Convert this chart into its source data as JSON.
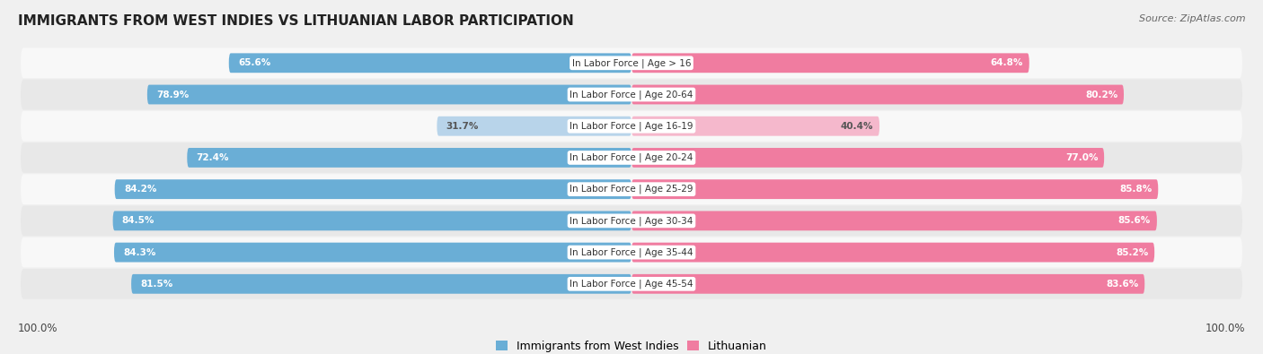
{
  "title": "IMMIGRANTS FROM WEST INDIES VS LITHUANIAN LABOR PARTICIPATION",
  "source": "Source: ZipAtlas.com",
  "categories": [
    "In Labor Force | Age > 16",
    "In Labor Force | Age 20-64",
    "In Labor Force | Age 16-19",
    "In Labor Force | Age 20-24",
    "In Labor Force | Age 25-29",
    "In Labor Force | Age 30-34",
    "In Labor Force | Age 35-44",
    "In Labor Force | Age 45-54"
  ],
  "west_indies_values": [
    65.6,
    78.9,
    31.7,
    72.4,
    84.2,
    84.5,
    84.3,
    81.5
  ],
  "lithuanian_values": [
    64.8,
    80.2,
    40.4,
    77.0,
    85.8,
    85.6,
    85.2,
    83.6
  ],
  "west_indies_color": "#6aaed6",
  "west_indies_light_color": "#b8d4ea",
  "lithuanian_color": "#f07ca0",
  "lithuanian_light_color": "#f5b8cc",
  "label_color_dark": "#555555",
  "background_color": "#f0f0f0",
  "row_bg_light": "#f8f8f8",
  "row_bg_dark": "#e8e8e8",
  "bar_height": 0.62,
  "max_value": 100.0,
  "legend_labels": [
    "Immigrants from West Indies",
    "Lithuanian"
  ],
  "bottom_left_label": "100.0%",
  "bottom_right_label": "100.0%"
}
